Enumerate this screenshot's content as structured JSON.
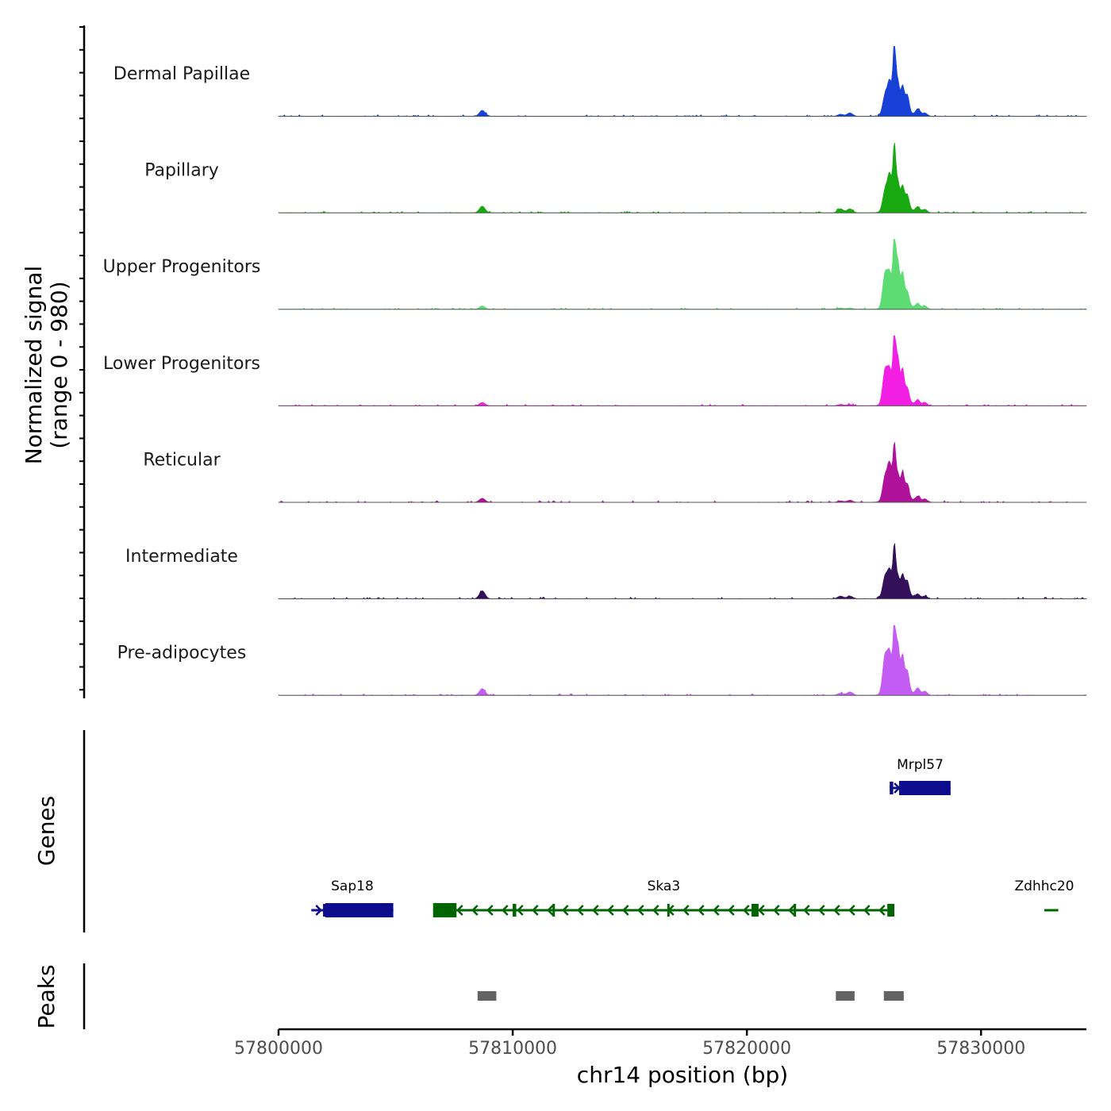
{
  "chart_data": {
    "type": "area",
    "title": "",
    "region": {
      "chromosome": "chr14",
      "start": 57800000,
      "end": 57834500
    },
    "ylabel": "Normalized signal",
    "ylabel_range": "(range 0 - 980)",
    "ylim": [
      0,
      980
    ],
    "xlabel": "chr14 position (bp)",
    "x_ticks": [
      "57800000",
      "57810000",
      "57820000",
      "57830000"
    ],
    "x_tick_values": [
      57800000,
      57810000,
      57820000,
      57830000
    ],
    "signal_peaks_bp": [
      {
        "pos": 57808700,
        "width": 120
      },
      {
        "pos": 57824000,
        "width": 120
      },
      {
        "pos": 57824400,
        "width": 120
      },
      {
        "pos": 57825900,
        "width": 100
      },
      {
        "pos": 57826100,
        "width": 90
      },
      {
        "pos": 57826300,
        "width": 60
      },
      {
        "pos": 57826450,
        "width": 70
      },
      {
        "pos": 57826650,
        "width": 70
      },
      {
        "pos": 57826850,
        "width": 80
      },
      {
        "pos": 57827300,
        "width": 90
      },
      {
        "pos": 57827600,
        "width": 100
      }
    ],
    "series": [
      {
        "name": "Dermal Papillae",
        "color": "#1640d6",
        "values": [
          0.09,
          0.03,
          0.05,
          0.28,
          0.45,
          1.0,
          0.4,
          0.35,
          0.25,
          0.1,
          0.05
        ]
      },
      {
        "name": "Papillary",
        "color": "#18a80f",
        "values": [
          0.1,
          0.06,
          0.06,
          0.3,
          0.5,
          0.9,
          0.35,
          0.3,
          0.2,
          0.08,
          0.05
        ]
      },
      {
        "name": "Upper Progenitors",
        "color": "#5ddc73",
        "values": [
          0.05,
          0.02,
          0.02,
          0.5,
          0.45,
          1.0,
          0.6,
          0.45,
          0.2,
          0.08,
          0.05
        ]
      },
      {
        "name": "Lower Progenitors",
        "color": "#f31ee3",
        "values": [
          0.05,
          0.02,
          0.02,
          0.5,
          0.45,
          1.0,
          0.6,
          0.45,
          0.2,
          0.08,
          0.05
        ]
      },
      {
        "name": "Reticular",
        "color": "#b0119b",
        "values": [
          0.06,
          0.02,
          0.03,
          0.35,
          0.5,
          0.75,
          0.3,
          0.35,
          0.2,
          0.08,
          0.05
        ]
      },
      {
        "name": "Intermediate",
        "color": "#35105a",
        "values": [
          0.12,
          0.04,
          0.04,
          0.3,
          0.35,
          0.7,
          0.22,
          0.26,
          0.2,
          0.06,
          0.04
        ]
      },
      {
        "name": "Pre-adipocytes",
        "color": "#c35cf2",
        "values": [
          0.1,
          0.03,
          0.05,
          0.55,
          0.55,
          0.95,
          0.65,
          0.5,
          0.3,
          0.1,
          0.06
        ]
      }
    ],
    "genes_track_label": "Genes",
    "genes": [
      {
        "name": "Mrpl57",
        "strand": "+",
        "start": 57826100,
        "end": 57828700,
        "color": "#0c0c8c",
        "exons": [
          [
            57826100,
            57826250
          ],
          [
            57826500,
            57828700
          ]
        ]
      },
      {
        "name": "Sap18",
        "strand": "+",
        "start": 57801400,
        "end": 57804900,
        "color": "#0c0c8c",
        "exons": [
          [
            57801900,
            57802050
          ],
          [
            57802000,
            57804900
          ]
        ]
      },
      {
        "name": "Ska3",
        "strand": "-",
        "start": 57806600,
        "end": 57826300,
        "color": "#006400",
        "exons": [
          [
            57806600,
            57807600
          ],
          [
            57810000,
            57810150
          ],
          [
            57811700,
            57811800
          ],
          [
            57816600,
            57816700
          ],
          [
            57820200,
            57820500
          ],
          [
            57822000,
            57822100
          ],
          [
            57826000,
            57826300
          ]
        ]
      },
      {
        "name": "Zdhhc20",
        "strand": "-",
        "start": 57832700,
        "end": 57833300,
        "color": "#006400",
        "exons": []
      }
    ],
    "peaks_track_label": "Peaks",
    "peaks_color": "#636363",
    "peaks": [
      [
        57808500,
        57809300
      ],
      [
        57823800,
        57824600
      ],
      [
        57825850,
        57826700
      ]
    ]
  }
}
